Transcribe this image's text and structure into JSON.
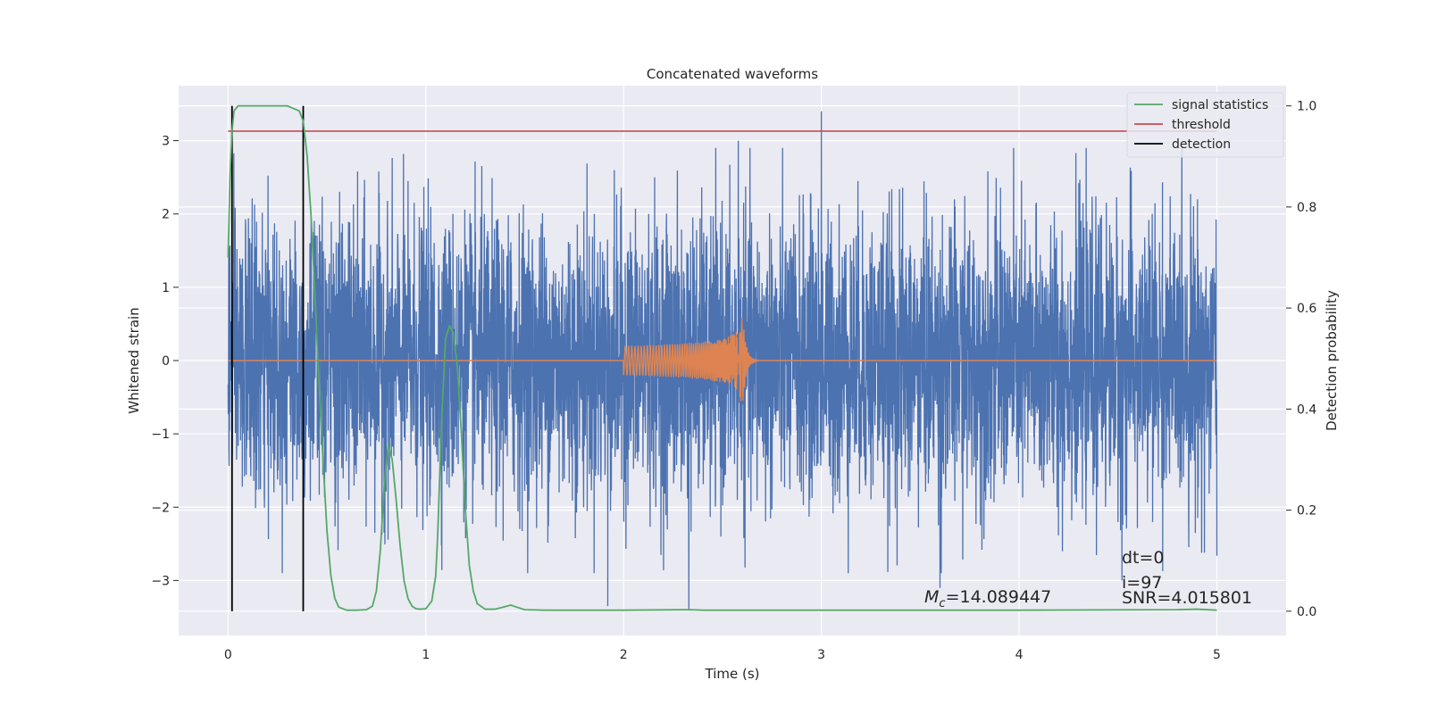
{
  "chart_data": {
    "type": "line",
    "title": "Concatenated waveforms",
    "xlabel": "Time (s)",
    "ylabel": "Whitened strain",
    "y2label": "Detection probability",
    "xlim": [
      -0.25,
      5.35
    ],
    "ylim": [
      -3.75,
      3.75
    ],
    "y2lim": [
      -0.048,
      1.04
    ],
    "xticks": [
      0,
      1,
      2,
      3,
      4,
      5
    ],
    "xtick_labels": [
      "0",
      "1",
      "2",
      "3",
      "4",
      "5"
    ],
    "yticks": [
      -3,
      -2,
      -1,
      0,
      1,
      2,
      3
    ],
    "ytick_labels": [
      "−3",
      "−2",
      "−1",
      "0",
      "1",
      "2",
      "3"
    ],
    "y2ticks": [
      0.0,
      0.2,
      0.4,
      0.6,
      0.8,
      1.0
    ],
    "y2tick_labels": [
      "0.0",
      "0.2",
      "0.4",
      "0.6",
      "0.8",
      "1.0"
    ],
    "grid": true,
    "legend_position": "top-right",
    "legend": [
      "signal statistics",
      "threshold",
      "detection"
    ],
    "colors": {
      "noise": "#4c72b0",
      "template": "#dd8452",
      "signal_statistics": "#55a868",
      "threshold": "#c44e52",
      "detection": "#000000",
      "background": "#eaeaf2",
      "grid": "#ffffff"
    },
    "series": [
      {
        "axis": "left",
        "role": "whitened-strain",
        "x_range": [
          0,
          5
        ],
        "amplitude_range": [
          -3.4,
          3.4
        ],
        "peaks": [
          [
            2.58,
            3.0
          ],
          [
            3.0,
            3.4
          ],
          [
            3.6,
            -3.1
          ],
          [
            2.33,
            -3.45
          ],
          [
            1.92,
            -3.35
          ],
          [
            4.52,
            -3.0
          ]
        ]
      },
      {
        "axis": "left",
        "role": "injected-chirp",
        "x_start": 2.0,
        "x_end": 2.6,
        "peak_amplitude": 0.75
      },
      {
        "name": "signal statistics",
        "axis": "right",
        "x": [
          0,
          0.01,
          0.02,
          0.03,
          0.05,
          0.08,
          0.12,
          0.2,
          0.3,
          0.36,
          0.38,
          0.4,
          0.42,
          0.44,
          0.46,
          0.48,
          0.5,
          0.52,
          0.54,
          0.56,
          0.6,
          0.65,
          0.7,
          0.73,
          0.75,
          0.77,
          0.79,
          0.81,
          0.83,
          0.85,
          0.87,
          0.89,
          0.91,
          0.93,
          0.95,
          0.97,
          1.0,
          1.03,
          1.05,
          1.06,
          1.08,
          1.1,
          1.12,
          1.14,
          1.16,
          1.18,
          1.2,
          1.22,
          1.24,
          1.26,
          1.3,
          1.35,
          1.4,
          1.43,
          1.46,
          1.5,
          1.6,
          2.0,
          2.33,
          2.4,
          3.0,
          4.0,
          4.8,
          4.9,
          5.0
        ],
        "values": [
          0.7,
          0.86,
          0.95,
          0.99,
          1.0,
          1.0,
          1.0,
          1.0,
          1.0,
          0.99,
          0.97,
          0.9,
          0.78,
          0.62,
          0.45,
          0.3,
          0.16,
          0.07,
          0.025,
          0.008,
          0.002,
          0.002,
          0.003,
          0.01,
          0.04,
          0.12,
          0.25,
          0.33,
          0.3,
          0.22,
          0.13,
          0.06,
          0.025,
          0.01,
          0.005,
          0.004,
          0.005,
          0.02,
          0.07,
          0.15,
          0.38,
          0.54,
          0.565,
          0.55,
          0.48,
          0.35,
          0.2,
          0.09,
          0.04,
          0.015,
          0.004,
          0.004,
          0.009,
          0.012,
          0.008,
          0.003,
          0.002,
          0.002,
          0.003,
          0.002,
          0.002,
          0.002,
          0.003,
          0.004,
          0.002
        ]
      },
      {
        "name": "threshold",
        "axis": "right",
        "value": 0.95,
        "x_range": [
          0,
          5
        ]
      },
      {
        "name": "detection",
        "axis": "right",
        "x": [
          0.02,
          0.38
        ]
      }
    ],
    "annotations": {
      "mc": "=14.089447",
      "dt": "dt=0",
      "i": "i=97",
      "snr": "SNR=4.015801"
    }
  }
}
